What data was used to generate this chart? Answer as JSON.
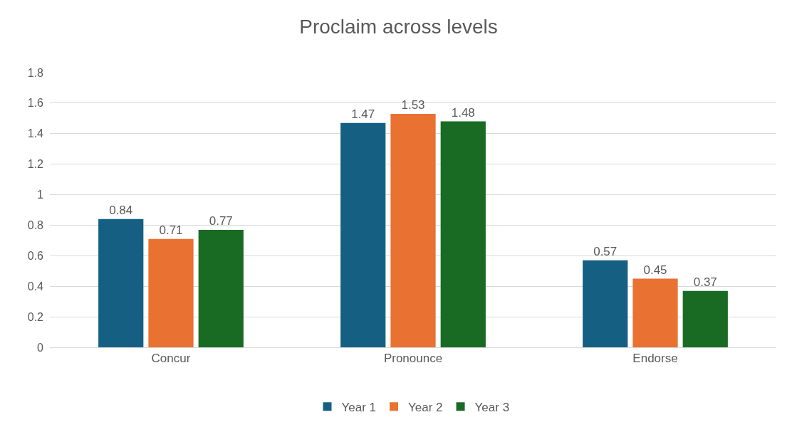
{
  "chart_data": {
    "type": "bar",
    "title": "Proclaim across levels",
    "categories": [
      "Concur",
      "Pronounce",
      "Endorse"
    ],
    "series": [
      {
        "name": "Year 1",
        "color": "#156082",
        "values": [
          0.84,
          1.47,
          0.57
        ]
      },
      {
        "name": "Year 2",
        "color": "#e97132",
        "values": [
          0.71,
          1.53,
          0.45
        ]
      },
      {
        "name": "Year 3",
        "color": "#196b24",
        "values": [
          0.77,
          1.48,
          0.37
        ]
      }
    ],
    "ylim": [
      0,
      1.8
    ],
    "yticks": [
      0,
      0.2,
      0.4,
      0.6,
      0.8,
      1,
      1.2,
      1.4,
      1.6,
      1.8
    ],
    "grid": "y",
    "legend": "bottom",
    "data_labels": true
  }
}
